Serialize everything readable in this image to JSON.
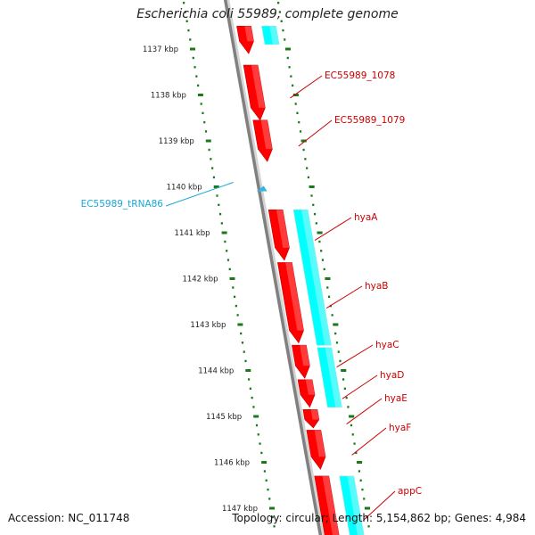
{
  "title": "Escherichia coli 55989, complete genome",
  "footer": {
    "accession": "Accession: NC_011748",
    "summary": "Topology: circular; Length: 5,154,862 bp; Genes: 4,984"
  },
  "colors": {
    "gene_forward": "#ff0000",
    "cds_reverse": "#00ffff",
    "trna": "#33b5e5",
    "ticks": "#1a7a1a",
    "backbone": "#808080",
    "gene_label": "#cc0000",
    "trna_label": "#1aa7d8"
  },
  "axis": {
    "tick_labels": [
      "1137 kbp",
      "1138 kbp",
      "1139 kbp",
      "1140 kbp",
      "1141 kbp",
      "1142 kbp",
      "1143 kbp",
      "1144 kbp",
      "1145 kbp",
      "1146 kbp",
      "1147 kbp"
    ]
  },
  "features": [
    {
      "name": "",
      "type": "gene",
      "start_kbp": 1136.5,
      "end_kbp": 1137.1,
      "strand": "+"
    },
    {
      "name": "EC55989_1078",
      "type": "gene",
      "start_kbp": 1137.35,
      "end_kbp": 1138.55,
      "strand": "+"
    },
    {
      "name": "EC55989_1079",
      "type": "gene",
      "start_kbp": 1138.55,
      "end_kbp": 1139.45,
      "strand": "+"
    },
    {
      "name": "EC55989_tRNA86",
      "type": "trna",
      "start_kbp": 1140.0,
      "end_kbp": 1140.12,
      "strand": "-"
    },
    {
      "name": "hyaA",
      "type": "gene",
      "start_kbp": 1140.5,
      "end_kbp": 1141.6,
      "strand": "+"
    },
    {
      "name": "hyaB",
      "type": "gene",
      "start_kbp": 1141.65,
      "end_kbp": 1143.4,
      "strand": "+"
    },
    {
      "name": "hyaC",
      "type": "gene",
      "start_kbp": 1143.45,
      "end_kbp": 1144.17,
      "strand": "+"
    },
    {
      "name": "hyaD",
      "type": "gene",
      "start_kbp": 1144.2,
      "end_kbp": 1144.8,
      "strand": "+"
    },
    {
      "name": "hyaE",
      "type": "gene",
      "start_kbp": 1144.85,
      "end_kbp": 1145.25,
      "strand": "+"
    },
    {
      "name": "hyaF",
      "type": "gene",
      "start_kbp": 1145.3,
      "end_kbp": 1146.15,
      "strand": "+"
    },
    {
      "name": "appC",
      "type": "gene",
      "start_kbp": 1146.3,
      "end_kbp": 1148.0,
      "strand": "+"
    }
  ],
  "cds_reverse": [
    {
      "start_kbp": 1136.5,
      "end_kbp": 1136.9
    },
    {
      "start_kbp": 1140.5,
      "end_kbp": 1143.45
    },
    {
      "start_kbp": 1143.5,
      "end_kbp": 1144.8
    },
    {
      "start_kbp": 1146.3,
      "end_kbp": 1148.0
    }
  ]
}
